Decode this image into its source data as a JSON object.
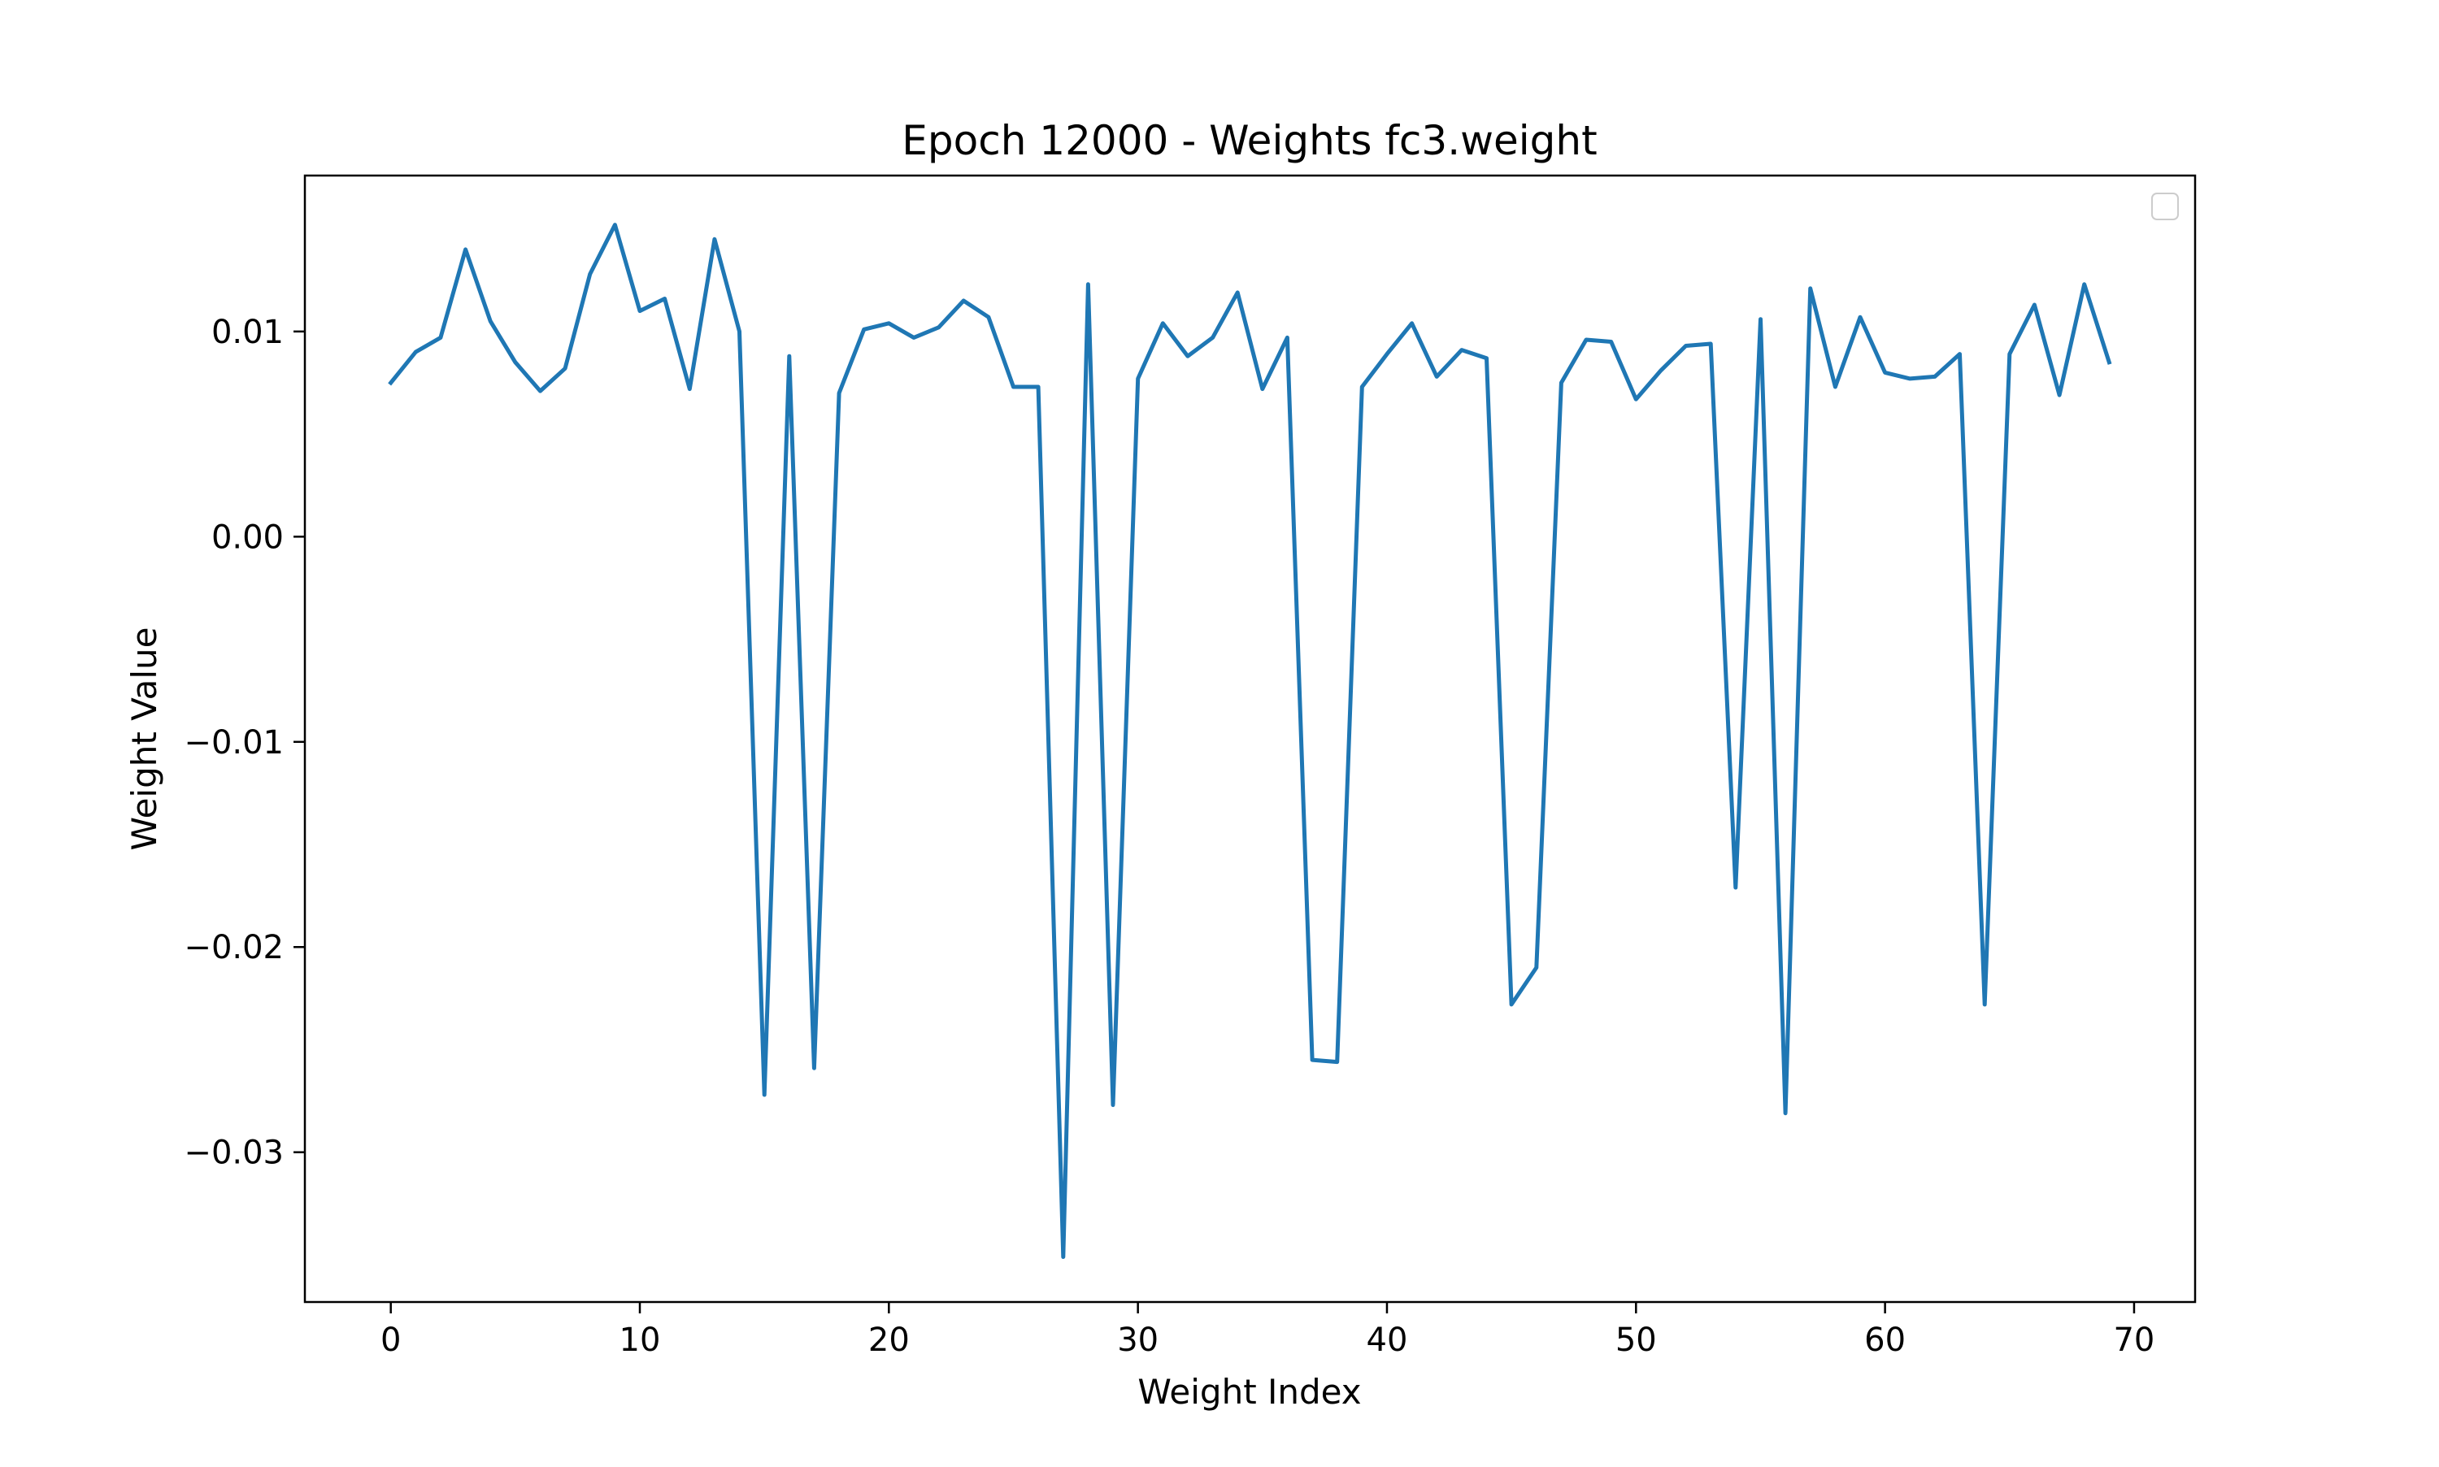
{
  "chart_data": {
    "type": "line",
    "title": "Epoch 12000 - Weights fc3.weight",
    "xlabel": "Weight Index",
    "ylabel": "Weight Value",
    "xlim": [
      -3.45,
      72.45
    ],
    "ylim": [
      -0.0373,
      0.0176
    ],
    "grid": false,
    "legend": "upper right (empty)",
    "line_color": "#1f77b4",
    "x_ticks": [
      0,
      10,
      20,
      30,
      40,
      50,
      60,
      70
    ],
    "x_tick_labels": [
      "0",
      "10",
      "20",
      "30",
      "40",
      "50",
      "60",
      "70"
    ],
    "y_ticks": [
      0.01,
      0.0,
      -0.01,
      -0.02,
      -0.03
    ],
    "y_tick_labels": [
      "0.01",
      "0.00",
      "−0.01",
      "−0.02",
      "−0.03"
    ],
    "series": [
      {
        "values": [
          0.0075,
          0.009,
          0.0097,
          0.014,
          0.0105,
          0.0085,
          0.0071,
          0.0082,
          0.0128,
          0.0152,
          0.011,
          0.0116,
          0.0072,
          0.0145,
          0.01,
          -0.0272,
          0.0088,
          -0.0259,
          0.007,
          0.0101,
          0.0104,
          0.0097,
          0.0102,
          0.0115,
          0.0107,
          0.0073,
          0.0073,
          -0.0351,
          0.0123,
          -0.0277,
          0.0077,
          0.0104,
          0.0088,
          0.0097,
          0.0119,
          0.0072,
          0.0097,
          -0.0255,
          -0.0256,
          0.0073,
          0.0089,
          0.0104,
          0.0078,
          0.0091,
          0.0087,
          -0.0228,
          -0.021,
          0.0075,
          0.0096,
          0.0095,
          0.0067,
          0.0081,
          0.0093,
          0.0094,
          -0.0171,
          0.0106,
          -0.0281,
          0.0121,
          0.0073,
          0.0107,
          0.008,
          0.0077,
          0.0078,
          0.0089,
          -0.0228,
          0.0089,
          0.0113,
          0.0069,
          0.0123,
          0.0085
        ]
      }
    ]
  }
}
